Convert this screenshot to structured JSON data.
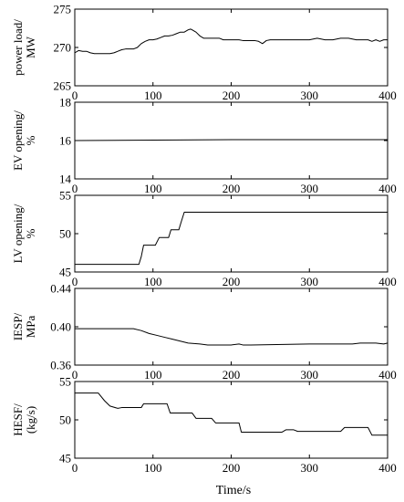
{
  "figure": {
    "xlabel": "Time/s"
  },
  "chart_data": [
    {
      "type": "line",
      "ylabel_lines": [
        "power load/",
        "MW"
      ],
      "xlim": [
        0,
        400
      ],
      "ylim": [
        265,
        275
      ],
      "xticks": [
        "0",
        "100",
        "200",
        "300",
        "400"
      ],
      "yticks": [
        {
          "value": 265,
          "label": "265"
        },
        {
          "value": 270,
          "label": "270"
        },
        {
          "value": 275,
          "label": "275"
        }
      ],
      "series": [
        {
          "x": [
            0,
            5,
            10,
            15,
            20,
            25,
            30,
            35,
            40,
            45,
            50,
            55,
            60,
            65,
            70,
            75,
            80,
            85,
            90,
            95,
            100,
            105,
            110,
            115,
            120,
            125,
            130,
            135,
            140,
            145,
            148,
            150,
            155,
            160,
            165,
            170,
            175,
            180,
            185,
            190,
            195,
            200,
            205,
            210,
            215,
            220,
            225,
            230,
            235,
            240,
            245,
            250,
            255,
            260,
            270,
            280,
            290,
            300,
            310,
            320,
            330,
            340,
            350,
            360,
            365,
            370,
            375,
            380,
            385,
            390,
            395,
            400
          ],
          "y": [
            269.3,
            269.6,
            269.5,
            269.5,
            269.3,
            269.2,
            269.2,
            269.2,
            269.2,
            269.2,
            269.3,
            269.5,
            269.7,
            269.8,
            269.8,
            269.8,
            270.0,
            270.5,
            270.8,
            271.0,
            271.0,
            271.1,
            271.3,
            271.5,
            271.5,
            271.6,
            271.8,
            272.0,
            272.0,
            272.3,
            272.4,
            272.3,
            272.0,
            271.5,
            271.2,
            271.2,
            271.2,
            271.2,
            271.2,
            271.0,
            271.0,
            271.0,
            271.0,
            271.0,
            270.9,
            270.9,
            270.9,
            270.9,
            270.8,
            270.5,
            270.9,
            271.0,
            271.0,
            271.0,
            271.0,
            271.0,
            271.0,
            271.0,
            271.2,
            271.0,
            271.0,
            271.2,
            271.2,
            271.0,
            271.0,
            271.0,
            271.0,
            270.8,
            271.0,
            270.8,
            271.0,
            271.0
          ]
        }
      ]
    },
    {
      "type": "line",
      "ylabel_lines": [
        "EV opening/",
        "%"
      ],
      "xlim": [
        0,
        400
      ],
      "ylim": [
        14,
        18
      ],
      "xticks": [
        "0",
        "100",
        "200",
        "300",
        "400"
      ],
      "yticks": [
        {
          "value": 14,
          "label": "14"
        },
        {
          "value": 16,
          "label": "16"
        },
        {
          "value": 18,
          "label": "18"
        }
      ],
      "series": [
        {
          "x": [
            0,
            220,
            400
          ],
          "y": [
            16.0,
            16.05,
            16.05
          ]
        }
      ]
    },
    {
      "type": "line",
      "ylabel_lines": [
        "LV opening/",
        "%"
      ],
      "xlim": [
        0,
        400
      ],
      "ylim": [
        45,
        55
      ],
      "xticks": [
        "0",
        "100",
        "200",
        "300",
        "400"
      ],
      "yticks": [
        {
          "value": 45,
          "label": "45"
        },
        {
          "value": 50,
          "label": "50"
        },
        {
          "value": 55,
          "label": "55"
        }
      ],
      "series": [
        {
          "x": [
            0,
            82,
            85,
            88,
            103,
            108,
            120,
            123,
            133,
            136,
            140,
            142,
            400
          ],
          "y": [
            46.0,
            46.0,
            47.0,
            48.5,
            48.5,
            49.5,
            49.5,
            50.5,
            50.5,
            51.5,
            52.8,
            52.8,
            52.8
          ]
        }
      ]
    },
    {
      "type": "line",
      "ylabel_lines": [
        "IESP/",
        "MPa"
      ],
      "xlim": [
        0,
        400
      ],
      "ylim": [
        0.36,
        0.44
      ],
      "xticks": [
        "0",
        "100",
        "200",
        "300",
        "400"
      ],
      "yticks": [
        {
          "value": 0.36,
          "label": "0.36"
        },
        {
          "value": 0.4,
          "label": "0.40"
        },
        {
          "value": 0.44,
          "label": "0.44"
        }
      ],
      "series": [
        {
          "x": [
            0,
            55,
            75,
            85,
            95,
            105,
            115,
            125,
            135,
            145,
            160,
            170,
            200,
            210,
            215,
            225,
            300,
            355,
            365,
            385,
            395,
            400
          ],
          "y": [
            0.398,
            0.398,
            0.398,
            0.396,
            0.393,
            0.391,
            0.389,
            0.387,
            0.385,
            0.383,
            0.382,
            0.381,
            0.381,
            0.382,
            0.381,
            0.381,
            0.382,
            0.382,
            0.383,
            0.383,
            0.382,
            0.383
          ]
        }
      ]
    },
    {
      "type": "line",
      "ylabel_lines": [
        "HESF/",
        "(kg/s)"
      ],
      "xlim": [
        0,
        400
      ],
      "ylim": [
        45,
        55
      ],
      "xticks": [
        "0",
        "100",
        "200",
        "300",
        "400"
      ],
      "yticks": [
        {
          "value": 45,
          "label": "45"
        },
        {
          "value": 50,
          "label": "50"
        },
        {
          "value": 55,
          "label": "55"
        }
      ],
      "series": [
        {
          "x": [
            0,
            30,
            38,
            45,
            55,
            60,
            85,
            88,
            118,
            122,
            150,
            155,
            175,
            180,
            210,
            213,
            265,
            270,
            280,
            285,
            300,
            340,
            345,
            375,
            380,
            390,
            400
          ],
          "y": [
            53.5,
            53.5,
            52.5,
            51.8,
            51.5,
            51.6,
            51.6,
            52.1,
            52.1,
            50.9,
            50.9,
            50.2,
            50.2,
            49.6,
            49.6,
            48.4,
            48.4,
            48.7,
            48.7,
            48.5,
            48.5,
            48.5,
            49.0,
            49.0,
            48.0,
            48.0,
            48.0
          ]
        }
      ]
    }
  ]
}
